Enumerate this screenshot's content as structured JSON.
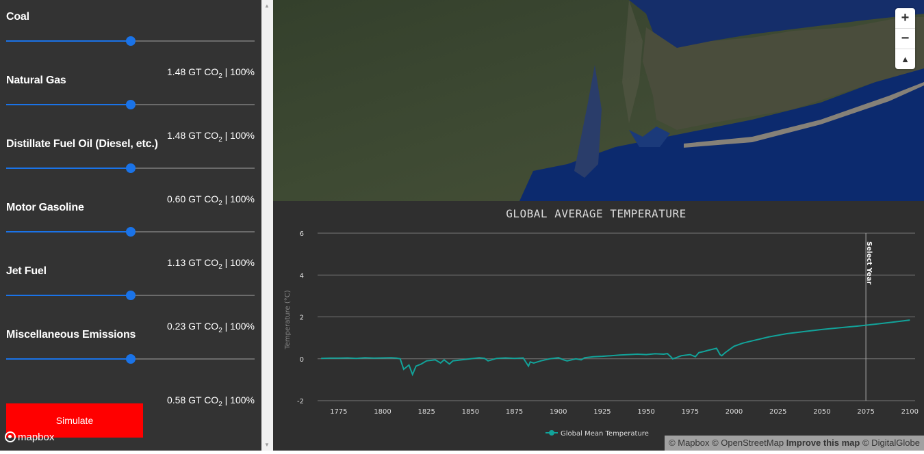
{
  "sidebar": {
    "controls": [
      {
        "name": "Coal",
        "value": ""
      },
      {
        "name": "Natural Gas",
        "value": "1.48 GT CO",
        "sub": "2",
        "suffix": " | 100%"
      },
      {
        "name": "Distillate Fuel Oil (Diesel, etc.)",
        "value": "1.48 GT CO",
        "sub": "2",
        "suffix": " | 100%"
      },
      {
        "name": "Motor Gasoline",
        "value": "0.60 GT CO",
        "sub": "2",
        "suffix": " | 100%"
      },
      {
        "name": "Jet Fuel",
        "value": "1.13 GT CO",
        "sub": "2",
        "suffix": " | 100%"
      },
      {
        "name": "Miscellaneous Emissions",
        "value": "0.23 GT CO",
        "sub": "2",
        "suffix": " | 100%"
      }
    ],
    "bottom_value": "0.58 GT CO",
    "bottom_sub": "2",
    "bottom_suffix": " | 100%",
    "slider_level_percent": 100,
    "simulate_label": "Simulate",
    "mapbox_logo": "mapbox"
  },
  "map": {
    "zoom_in": "+",
    "zoom_out": "−",
    "compass": "▲",
    "attribution": "© Mapbox © OpenStreetMap",
    "improve": "Improve this map",
    "attribution_suffix": "© DigitalGlobe"
  },
  "accent_color": "#1a73e8",
  "button_color": "#ff0000",
  "chart_data": {
    "type": "line",
    "title": "GLOBAL AVERAGE TEMPERATURE",
    "ylabel": "Temperature (°C)",
    "xlabel": "",
    "xlim": [
      1763,
      2103
    ],
    "ylim": [
      -2,
      6
    ],
    "yticks": [
      -2,
      0,
      2,
      4,
      6
    ],
    "xticks": [
      1775,
      1800,
      1825,
      1850,
      1875,
      1900,
      1925,
      1950,
      1975,
      2000,
      2025,
      2050,
      2075,
      2100
    ],
    "marker_label": "Select Year",
    "marker_x": 2075,
    "grid": true,
    "legend_position": "bottom",
    "series": [
      {
        "name": "Global Mean Temperature",
        "color": "#12a39a",
        "x": [
          1765,
          1770,
          1775,
          1780,
          1785,
          1790,
          1795,
          1800,
          1805,
          1808,
          1810,
          1812,
          1815,
          1817,
          1819,
          1822,
          1825,
          1830,
          1833,
          1835,
          1838,
          1840,
          1845,
          1850,
          1855,
          1858,
          1860,
          1865,
          1870,
          1875,
          1880,
          1883,
          1884,
          1886,
          1890,
          1895,
          1900,
          1903,
          1905,
          1910,
          1913,
          1915,
          1920,
          1925,
          1930,
          1935,
          1940,
          1945,
          1950,
          1955,
          1960,
          1962,
          1964,
          1965,
          1967,
          1970,
          1975,
          1978,
          1980,
          1983,
          1985,
          1990,
          1992,
          1993,
          1995,
          2000,
          2005,
          2010,
          2020,
          2030,
          2040,
          2050,
          2060,
          2070,
          2080,
          2090,
          2100
        ],
        "y": [
          0.02,
          0.03,
          0.03,
          0.04,
          0.02,
          0.05,
          0.03,
          0.04,
          0.05,
          0.03,
          0.0,
          -0.5,
          -0.3,
          -0.75,
          -0.35,
          -0.25,
          -0.1,
          -0.05,
          -0.2,
          -0.05,
          -0.25,
          -0.1,
          -0.05,
          0.0,
          0.05,
          0.02,
          -0.1,
          0.02,
          0.04,
          0.02,
          0.04,
          -0.35,
          -0.15,
          -0.2,
          -0.1,
          0.0,
          0.05,
          -0.05,
          -0.1,
          0.0,
          -0.05,
          0.05,
          0.1,
          0.12,
          0.15,
          0.18,
          0.2,
          0.22,
          0.2,
          0.24,
          0.22,
          0.25,
          0.1,
          0.0,
          0.05,
          0.15,
          0.2,
          0.1,
          0.3,
          0.35,
          0.4,
          0.5,
          0.2,
          0.15,
          0.3,
          0.6,
          0.75,
          0.85,
          1.05,
          1.2,
          1.3,
          1.4,
          1.48,
          1.56,
          1.65,
          1.75,
          1.85
        ]
      }
    ]
  }
}
